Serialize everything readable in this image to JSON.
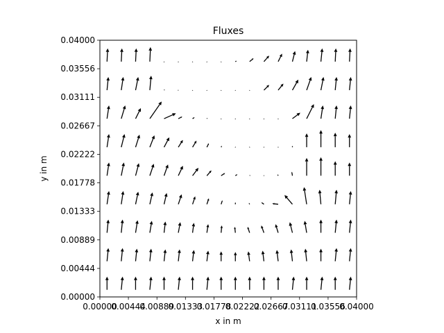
{
  "chart_data": {
    "type": "quiver",
    "title": "Fluxes",
    "xlabel": "x in m",
    "ylabel": "y in m",
    "xlim": [
      0.0,
      0.04
    ],
    "ylim": [
      0.0,
      0.04
    ],
    "grid": false,
    "xticks": [
      "0.00000",
      "0.00444",
      "0.00889",
      "0.01333",
      "0.01778",
      "0.02222",
      "0.02667",
      "0.03111",
      "0.03556",
      "0.04000"
    ],
    "yticks": [
      "0.00000",
      "0.00444",
      "0.00889",
      "0.01333",
      "0.01778",
      "0.02222",
      "0.02667",
      "0.03111",
      "0.03556",
      "0.04000"
    ],
    "tick_values": [
      0.0,
      0.00444,
      0.00889,
      0.01333,
      0.01778,
      0.02222,
      0.02667,
      0.03111,
      0.03556,
      0.04
    ],
    "arrow_color": "#000000",
    "arrows": [
      {
        "x": 0.00111,
        "y": 0.00111,
        "u": 0.0,
        "v": 1.0
      },
      {
        "x": 0.00333,
        "y": 0.00111,
        "u": 0.1,
        "v": 1.0
      },
      {
        "x": 0.00556,
        "y": 0.00111,
        "u": 0.0,
        "v": 1.0
      },
      {
        "x": 0.00778,
        "y": 0.00111,
        "u": 0.1,
        "v": 1.0
      },
      {
        "x": 0.01,
        "y": 0.00111,
        "u": 0.0,
        "v": 1.0
      },
      {
        "x": 0.01222,
        "y": 0.00111,
        "u": 0.1,
        "v": 1.0
      },
      {
        "x": 0.01444,
        "y": 0.00111,
        "u": 0.0,
        "v": 1.0
      },
      {
        "x": 0.01667,
        "y": 0.00111,
        "u": 0.1,
        "v": 1.0
      },
      {
        "x": 0.01889,
        "y": 0.00111,
        "u": 0.0,
        "v": 1.0
      },
      {
        "x": 0.02111,
        "y": 0.00111,
        "u": 0.0,
        "v": 1.0
      },
      {
        "x": 0.02333,
        "y": 0.00111,
        "u": 0.0,
        "v": 1.0
      },
      {
        "x": 0.02556,
        "y": 0.00111,
        "u": 0.0,
        "v": 1.0
      },
      {
        "x": 0.02778,
        "y": 0.00111,
        "u": 0.0,
        "v": 1.0
      },
      {
        "x": 0.03,
        "y": 0.00111,
        "u": 0.1,
        "v": 1.0
      },
      {
        "x": 0.03222,
        "y": 0.00111,
        "u": 0.0,
        "v": 1.0
      },
      {
        "x": 0.03444,
        "y": 0.00111,
        "u": 0.1,
        "v": 1.0
      },
      {
        "x": 0.03667,
        "y": 0.00111,
        "u": 0.0,
        "v": 1.0
      },
      {
        "x": 0.03889,
        "y": 0.00111,
        "u": 0.1,
        "v": 1.0
      },
      {
        "x": 0.00111,
        "y": 0.00556,
        "u": 0.1,
        "v": 1.0
      },
      {
        "x": 0.00333,
        "y": 0.00556,
        "u": 0.1,
        "v": 1.0
      },
      {
        "x": 0.00556,
        "y": 0.00556,
        "u": 0.1,
        "v": 0.95
      },
      {
        "x": 0.00778,
        "y": 0.00556,
        "u": 0.1,
        "v": 0.95
      },
      {
        "x": 0.01,
        "y": 0.00556,
        "u": 0.1,
        "v": 0.9
      },
      {
        "x": 0.01222,
        "y": 0.00556,
        "u": 0.1,
        "v": 0.9
      },
      {
        "x": 0.01444,
        "y": 0.00556,
        "u": 0.1,
        "v": 0.85
      },
      {
        "x": 0.01667,
        "y": 0.00556,
        "u": 0.1,
        "v": 0.8
      },
      {
        "x": 0.01889,
        "y": 0.00556,
        "u": 0.0,
        "v": 0.75
      },
      {
        "x": 0.02111,
        "y": 0.00556,
        "u": 0.0,
        "v": 0.7
      },
      {
        "x": 0.02333,
        "y": 0.00556,
        "u": -0.1,
        "v": 0.75
      },
      {
        "x": 0.02556,
        "y": 0.00556,
        "u": -0.1,
        "v": 0.8
      },
      {
        "x": 0.02778,
        "y": 0.00556,
        "u": -0.1,
        "v": 0.85
      },
      {
        "x": 0.03,
        "y": 0.00556,
        "u": -0.1,
        "v": 0.9
      },
      {
        "x": 0.03222,
        "y": 0.00556,
        "u": -0.1,
        "v": 0.95
      },
      {
        "x": 0.03444,
        "y": 0.00556,
        "u": 0.0,
        "v": 0.95
      },
      {
        "x": 0.03667,
        "y": 0.00556,
        "u": 0.1,
        "v": 1.0
      },
      {
        "x": 0.03889,
        "y": 0.00556,
        "u": 0.1,
        "v": 1.0
      },
      {
        "x": 0.00111,
        "y": 0.01,
        "u": 0.1,
        "v": 1.0
      },
      {
        "x": 0.00333,
        "y": 0.01,
        "u": 0.1,
        "v": 1.0
      },
      {
        "x": 0.00556,
        "y": 0.01,
        "u": 0.15,
        "v": 0.95
      },
      {
        "x": 0.00778,
        "y": 0.01,
        "u": 0.15,
        "v": 0.9
      },
      {
        "x": 0.01,
        "y": 0.01,
        "u": 0.1,
        "v": 0.85
      },
      {
        "x": 0.01222,
        "y": 0.01,
        "u": 0.15,
        "v": 0.8
      },
      {
        "x": 0.01444,
        "y": 0.01,
        "u": 0.1,
        "v": 0.75
      },
      {
        "x": 0.01667,
        "y": 0.01,
        "u": 0.1,
        "v": 0.65
      },
      {
        "x": 0.01889,
        "y": 0.01,
        "u": 0.05,
        "v": 0.55
      },
      {
        "x": 0.02111,
        "y": 0.01,
        "u": -0.05,
        "v": 0.45
      },
      {
        "x": 0.02333,
        "y": 0.01,
        "u": -0.15,
        "v": 0.45
      },
      {
        "x": 0.02556,
        "y": 0.01,
        "u": -0.2,
        "v": 0.55
      },
      {
        "x": 0.02778,
        "y": 0.01,
        "u": -0.2,
        "v": 0.65
      },
      {
        "x": 0.03,
        "y": 0.01,
        "u": -0.2,
        "v": 0.8
      },
      {
        "x": 0.03222,
        "y": 0.01,
        "u": -0.15,
        "v": 0.9
      },
      {
        "x": 0.03444,
        "y": 0.01,
        "u": 0.0,
        "v": 1.0
      },
      {
        "x": 0.03667,
        "y": 0.01,
        "u": 0.1,
        "v": 1.0
      },
      {
        "x": 0.03889,
        "y": 0.01,
        "u": 0.1,
        "v": 1.0
      },
      {
        "x": 0.00111,
        "y": 0.01444,
        "u": 0.15,
        "v": 1.0
      },
      {
        "x": 0.00333,
        "y": 0.01444,
        "u": 0.15,
        "v": 1.0
      },
      {
        "x": 0.00556,
        "y": 0.01444,
        "u": 0.2,
        "v": 0.95
      },
      {
        "x": 0.00778,
        "y": 0.01444,
        "u": 0.2,
        "v": 0.9
      },
      {
        "x": 0.01,
        "y": 0.01444,
        "u": 0.2,
        "v": 0.85
      },
      {
        "x": 0.01222,
        "y": 0.01444,
        "u": 0.25,
        "v": 0.75
      },
      {
        "x": 0.01444,
        "y": 0.01444,
        "u": 0.2,
        "v": 0.6
      },
      {
        "x": 0.01667,
        "y": 0.01444,
        "u": 0.15,
        "v": 0.45
      },
      {
        "x": 0.01889,
        "y": 0.01444,
        "u": 0.1,
        "v": 0.3
      },
      {
        "x": 0.02111,
        "y": 0.01444,
        "u": 0.0,
        "v": 0.15
      },
      {
        "x": 0.02333,
        "y": 0.01444,
        "u": -0.05,
        "v": 0.1
      },
      {
        "x": 0.02556,
        "y": 0.01444,
        "u": -0.2,
        "v": 0.15
      },
      {
        "x": 0.02778,
        "y": 0.01444,
        "u": -0.45,
        "v": 0.05
      },
      {
        "x": 0.03,
        "y": 0.01444,
        "u": -0.6,
        "v": 0.7
      },
      {
        "x": 0.03222,
        "y": 0.01444,
        "u": -0.2,
        "v": 1.3
      },
      {
        "x": 0.03444,
        "y": 0.01444,
        "u": -0.1,
        "v": 1.1
      },
      {
        "x": 0.03667,
        "y": 0.01444,
        "u": 0.1,
        "v": 1.1
      },
      {
        "x": 0.03889,
        "y": 0.01444,
        "u": 0.1,
        "v": 1.0
      },
      {
        "x": 0.00111,
        "y": 0.01889,
        "u": 0.15,
        "v": 1.0
      },
      {
        "x": 0.00333,
        "y": 0.01889,
        "u": 0.2,
        "v": 1.0
      },
      {
        "x": 0.00556,
        "y": 0.01889,
        "u": 0.25,
        "v": 0.95
      },
      {
        "x": 0.00778,
        "y": 0.01889,
        "u": 0.3,
        "v": 0.9
      },
      {
        "x": 0.01,
        "y": 0.01889,
        "u": 0.3,
        "v": 0.85
      },
      {
        "x": 0.01222,
        "y": 0.01889,
        "u": 0.35,
        "v": 0.75
      },
      {
        "x": 0.01444,
        "y": 0.01889,
        "u": 0.45,
        "v": 0.6
      },
      {
        "x": 0.01667,
        "y": 0.01889,
        "u": 0.35,
        "v": 0.4
      },
      {
        "x": 0.01889,
        "y": 0.01889,
        "u": 0.3,
        "v": 0.2
      },
      {
        "x": 0.02111,
        "y": 0.01889,
        "u": 0.15,
        "v": 0.1
      },
      {
        "x": 0.02333,
        "y": 0.01889,
        "u": 0.05,
        "v": 0.05
      },
      {
        "x": 0.02556,
        "y": 0.01889,
        "u": 0.0,
        "v": 0.05
      },
      {
        "x": 0.02778,
        "y": 0.01889,
        "u": -0.05,
        "v": 0.1
      },
      {
        "x": 0.03,
        "y": 0.01889,
        "u": -0.05,
        "v": 0.3
      },
      {
        "x": 0.03222,
        "y": 0.01889,
        "u": 0.0,
        "v": 1.35
      },
      {
        "x": 0.03444,
        "y": 0.01889,
        "u": 0.0,
        "v": 1.4
      },
      {
        "x": 0.03667,
        "y": 0.01889,
        "u": 0.0,
        "v": 1.1
      },
      {
        "x": 0.03889,
        "y": 0.01889,
        "u": 0.0,
        "v": 1.0
      },
      {
        "x": 0.00111,
        "y": 0.02333,
        "u": 0.15,
        "v": 1.0
      },
      {
        "x": 0.00333,
        "y": 0.02333,
        "u": 0.25,
        "v": 1.0
      },
      {
        "x": 0.00556,
        "y": 0.02333,
        "u": 0.3,
        "v": 0.95
      },
      {
        "x": 0.00778,
        "y": 0.02333,
        "u": 0.35,
        "v": 0.9
      },
      {
        "x": 0.01,
        "y": 0.02333,
        "u": 0.4,
        "v": 0.75
      },
      {
        "x": 0.01222,
        "y": 0.02333,
        "u": 0.35,
        "v": 0.55
      },
      {
        "x": 0.01444,
        "y": 0.02333,
        "u": 0.3,
        "v": 0.5
      },
      {
        "x": 0.01667,
        "y": 0.02333,
        "u": 0.15,
        "v": 0.3
      },
      {
        "x": 0.01889,
        "y": 0.02333,
        "u": 0.05,
        "v": 0.1
      },
      {
        "x": 0.02111,
        "y": 0.02333,
        "u": 0.0,
        "v": 0.05
      },
      {
        "x": 0.02333,
        "y": 0.02333,
        "u": 0.0,
        "v": 0.05
      },
      {
        "x": 0.02556,
        "y": 0.02333,
        "u": 0.0,
        "v": 0.05
      },
      {
        "x": 0.02778,
        "y": 0.02333,
        "u": 0.0,
        "v": 0.05
      },
      {
        "x": 0.03,
        "y": 0.02333,
        "u": 0.0,
        "v": 0.1
      },
      {
        "x": 0.03222,
        "y": 0.02333,
        "u": 0.0,
        "v": 1.05
      },
      {
        "x": 0.03444,
        "y": 0.02333,
        "u": 0.0,
        "v": 1.3
      },
      {
        "x": 0.03667,
        "y": 0.02333,
        "u": 0.0,
        "v": 1.1
      },
      {
        "x": 0.03889,
        "y": 0.02333,
        "u": 0.0,
        "v": 1.0
      },
      {
        "x": 0.00111,
        "y": 0.02778,
        "u": 0.15,
        "v": 1.0
      },
      {
        "x": 0.00333,
        "y": 0.02778,
        "u": 0.3,
        "v": 1.0
      },
      {
        "x": 0.00556,
        "y": 0.02778,
        "u": 0.4,
        "v": 0.8
      },
      {
        "x": 0.00778,
        "y": 0.02778,
        "u": 0.9,
        "v": 1.3
      },
      {
        "x": 0.01,
        "y": 0.02778,
        "u": 0.9,
        "v": 0.4
      },
      {
        "x": 0.01222,
        "y": 0.02778,
        "u": 0.3,
        "v": 0.15
      },
      {
        "x": 0.01444,
        "y": 0.02778,
        "u": 0.15,
        "v": 0.1
      },
      {
        "x": 0.01667,
        "y": 0.02778,
        "u": 0.05,
        "v": 0.05
      },
      {
        "x": 0.01889,
        "y": 0.02778,
        "u": 0.0,
        "v": 0.02
      },
      {
        "x": 0.02111,
        "y": 0.02778,
        "u": 0.0,
        "v": 0.02
      },
      {
        "x": 0.02333,
        "y": 0.02778,
        "u": 0.0,
        "v": 0.02
      },
      {
        "x": 0.02556,
        "y": 0.02778,
        "u": 0.0,
        "v": 0.02
      },
      {
        "x": 0.02778,
        "y": 0.02778,
        "u": 0.0,
        "v": 0.02
      },
      {
        "x": 0.03,
        "y": 0.02778,
        "u": 0.6,
        "v": 0.45
      },
      {
        "x": 0.03222,
        "y": 0.02778,
        "u": 0.55,
        "v": 1.1
      },
      {
        "x": 0.03444,
        "y": 0.02778,
        "u": 0.15,
        "v": 1.0
      },
      {
        "x": 0.03667,
        "y": 0.02778,
        "u": 0.1,
        "v": 1.0
      },
      {
        "x": 0.03889,
        "y": 0.02778,
        "u": 0.1,
        "v": 1.0
      },
      {
        "x": 0.00111,
        "y": 0.03222,
        "u": 0.1,
        "v": 1.0
      },
      {
        "x": 0.00333,
        "y": 0.03222,
        "u": 0.15,
        "v": 1.0
      },
      {
        "x": 0.00556,
        "y": 0.03222,
        "u": 0.2,
        "v": 1.0
      },
      {
        "x": 0.00778,
        "y": 0.03222,
        "u": 0.1,
        "v": 1.1
      },
      {
        "x": 0.01,
        "y": 0.03222,
        "u": 0.05,
        "v": 0.05
      },
      {
        "x": 0.01222,
        "y": 0.03222,
        "u": 0.02,
        "v": 0.02
      },
      {
        "x": 0.01444,
        "y": 0.03222,
        "u": 0.0,
        "v": 0.02
      },
      {
        "x": 0.01667,
        "y": 0.03222,
        "u": 0.0,
        "v": 0.02
      },
      {
        "x": 0.01889,
        "y": 0.03222,
        "u": 0.0,
        "v": 0.02
      },
      {
        "x": 0.02111,
        "y": 0.03222,
        "u": 0.0,
        "v": 0.02
      },
      {
        "x": 0.02333,
        "y": 0.03222,
        "u": 0.0,
        "v": 0.02
      },
      {
        "x": 0.02556,
        "y": 0.03222,
        "u": 0.4,
        "v": 0.4
      },
      {
        "x": 0.02778,
        "y": 0.03222,
        "u": 0.4,
        "v": 0.5
      },
      {
        "x": 0.03,
        "y": 0.03222,
        "u": 0.45,
        "v": 0.8
      },
      {
        "x": 0.03222,
        "y": 0.03222,
        "u": 0.35,
        "v": 1.0
      },
      {
        "x": 0.03444,
        "y": 0.03222,
        "u": 0.2,
        "v": 1.0
      },
      {
        "x": 0.03667,
        "y": 0.03222,
        "u": 0.1,
        "v": 1.0
      },
      {
        "x": 0.03889,
        "y": 0.03222,
        "u": 0.1,
        "v": 1.0
      },
      {
        "x": 0.00111,
        "y": 0.03667,
        "u": 0.05,
        "v": 1.0
      },
      {
        "x": 0.00333,
        "y": 0.03667,
        "u": 0.05,
        "v": 1.0
      },
      {
        "x": 0.00556,
        "y": 0.03667,
        "u": 0.05,
        "v": 1.0
      },
      {
        "x": 0.00778,
        "y": 0.03667,
        "u": 0.05,
        "v": 1.1
      },
      {
        "x": 0.01,
        "y": 0.03667,
        "u": 0.0,
        "v": 0.02
      },
      {
        "x": 0.01222,
        "y": 0.03667,
        "u": 0.0,
        "v": 0.02
      },
      {
        "x": 0.01444,
        "y": 0.03667,
        "u": 0.0,
        "v": 0.02
      },
      {
        "x": 0.01667,
        "y": 0.03667,
        "u": 0.0,
        "v": 0.02
      },
      {
        "x": 0.01889,
        "y": 0.03667,
        "u": 0.0,
        "v": 0.02
      },
      {
        "x": 0.02111,
        "y": 0.03667,
        "u": 0.1,
        "v": 0.05
      },
      {
        "x": 0.02333,
        "y": 0.03667,
        "u": 0.3,
        "v": 0.25
      },
      {
        "x": 0.02556,
        "y": 0.03667,
        "u": 0.4,
        "v": 0.45
      },
      {
        "x": 0.02778,
        "y": 0.03667,
        "u": 0.3,
        "v": 0.6
      },
      {
        "x": 0.03,
        "y": 0.03667,
        "u": 0.2,
        "v": 0.8
      },
      {
        "x": 0.03222,
        "y": 0.03667,
        "u": 0.1,
        "v": 0.9
      },
      {
        "x": 0.03444,
        "y": 0.03667,
        "u": 0.1,
        "v": 1.0
      },
      {
        "x": 0.03667,
        "y": 0.03667,
        "u": 0.05,
        "v": 1.0
      },
      {
        "x": 0.03889,
        "y": 0.03667,
        "u": 0.05,
        "v": 1.0
      }
    ]
  }
}
